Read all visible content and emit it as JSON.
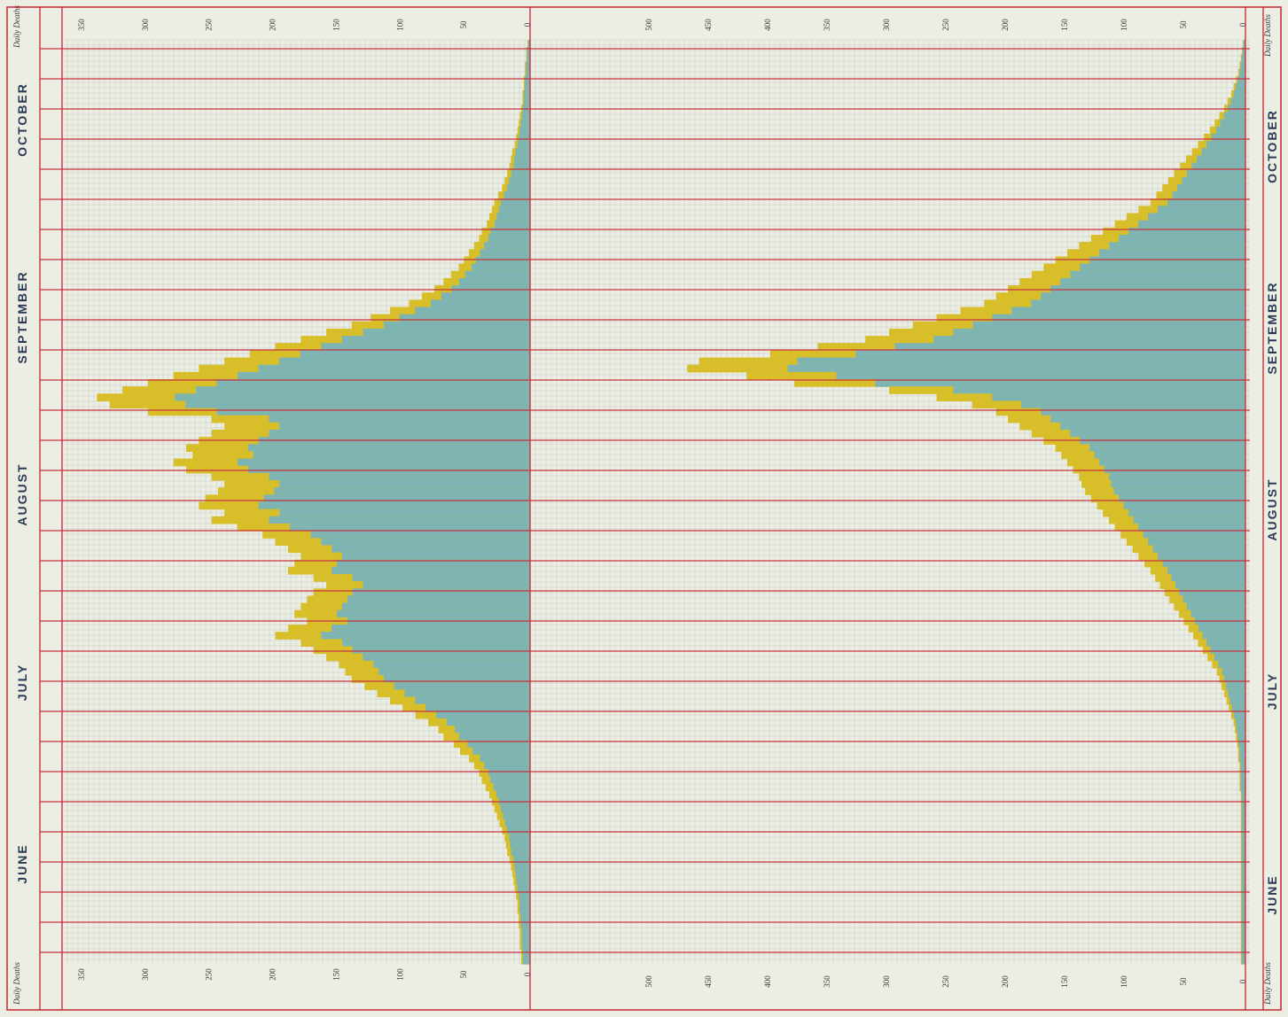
{
  "chart_data": [
    {
      "type": "area",
      "orientation": "vertical",
      "panel": "left",
      "header_label": "Daily Deaths",
      "months": [
        "OCTOBER",
        "SEPTEMBER",
        "AUGUST",
        "JULY",
        "JUNE"
      ],
      "ticks": [
        "0",
        "50",
        "100",
        "150",
        "200",
        "250",
        "300",
        "350"
      ],
      "xlim": [
        0,
        350
      ],
      "series_note": "yellow = total daily deaths, blue = portion shaded",
      "values": [
        2,
        3,
        3,
        4,
        4,
        5,
        5,
        6,
        6,
        7,
        8,
        9,
        10,
        11,
        12,
        14,
        15,
        16,
        18,
        20,
        22,
        25,
        28,
        30,
        32,
        34,
        38,
        40,
        44,
        48,
        52,
        56,
        62,
        68,
        75,
        85,
        95,
        110,
        125,
        140,
        160,
        180,
        200,
        220,
        240,
        260,
        280,
        300,
        320,
        340,
        330,
        300,
        250,
        240,
        250,
        260,
        270,
        265,
        280,
        270,
        250,
        240,
        245,
        255,
        260,
        240,
        250,
        230,
        210,
        200,
        190,
        180,
        185,
        190,
        170,
        160,
        170,
        175,
        180,
        185,
        175,
        190,
        200,
        180,
        170,
        160,
        150,
        145,
        140,
        130,
        120,
        110,
        100,
        90,
        80,
        72,
        68,
        60,
        55,
        48,
        44,
        40,
        38,
        35,
        32,
        30,
        28,
        26,
        24,
        22,
        20,
        19,
        18,
        16,
        15,
        14,
        13,
        12,
        11,
        10,
        10,
        9,
        9,
        8,
        8,
        8,
        7,
        7
      ]
    },
    {
      "type": "area",
      "orientation": "vertical",
      "panel": "right",
      "header_label": "Daily Deaths",
      "months": [
        "OCTOBER",
        "SEPTEMBER",
        "AUGUST",
        "JULY",
        "JUNE"
      ],
      "ticks": [
        "0",
        "50",
        "100",
        "150",
        "200",
        "250",
        "300",
        "350",
        "400",
        "450",
        "500"
      ],
      "xlim": [
        0,
        500
      ],
      "values": [
        2,
        3,
        4,
        5,
        6,
        8,
        10,
        12,
        15,
        18,
        22,
        26,
        30,
        35,
        40,
        45,
        50,
        55,
        60,
        65,
        70,
        75,
        80,
        90,
        100,
        110,
        120,
        130,
        140,
        150,
        160,
        170,
        180,
        190,
        200,
        210,
        220,
        240,
        260,
        280,
        300,
        320,
        360,
        400,
        460,
        470,
        420,
        380,
        300,
        260,
        230,
        210,
        200,
        190,
        180,
        170,
        160,
        155,
        150,
        145,
        140,
        138,
        135,
        130,
        125,
        120,
        115,
        110,
        105,
        100,
        95,
        90,
        85,
        80,
        76,
        72,
        68,
        64,
        60,
        56,
        52,
        48,
        44,
        40,
        36,
        32,
        28,
        24,
        22,
        20,
        18,
        16,
        14,
        12,
        10,
        9,
        8,
        7,
        6,
        6,
        5,
        5,
        5,
        5,
        4,
        4,
        4,
        4,
        4,
        4,
        4,
        4,
        4,
        4,
        4,
        4,
        4,
        4,
        4,
        4,
        4,
        4,
        4,
        4,
        4,
        4,
        4,
        4
      ]
    }
  ],
  "legend_colors": {
    "total": "#d8bf2a",
    "shaded": "#6fb2c9",
    "grid_red": "#c8323c",
    "grid_fine": "#9aa09c"
  }
}
